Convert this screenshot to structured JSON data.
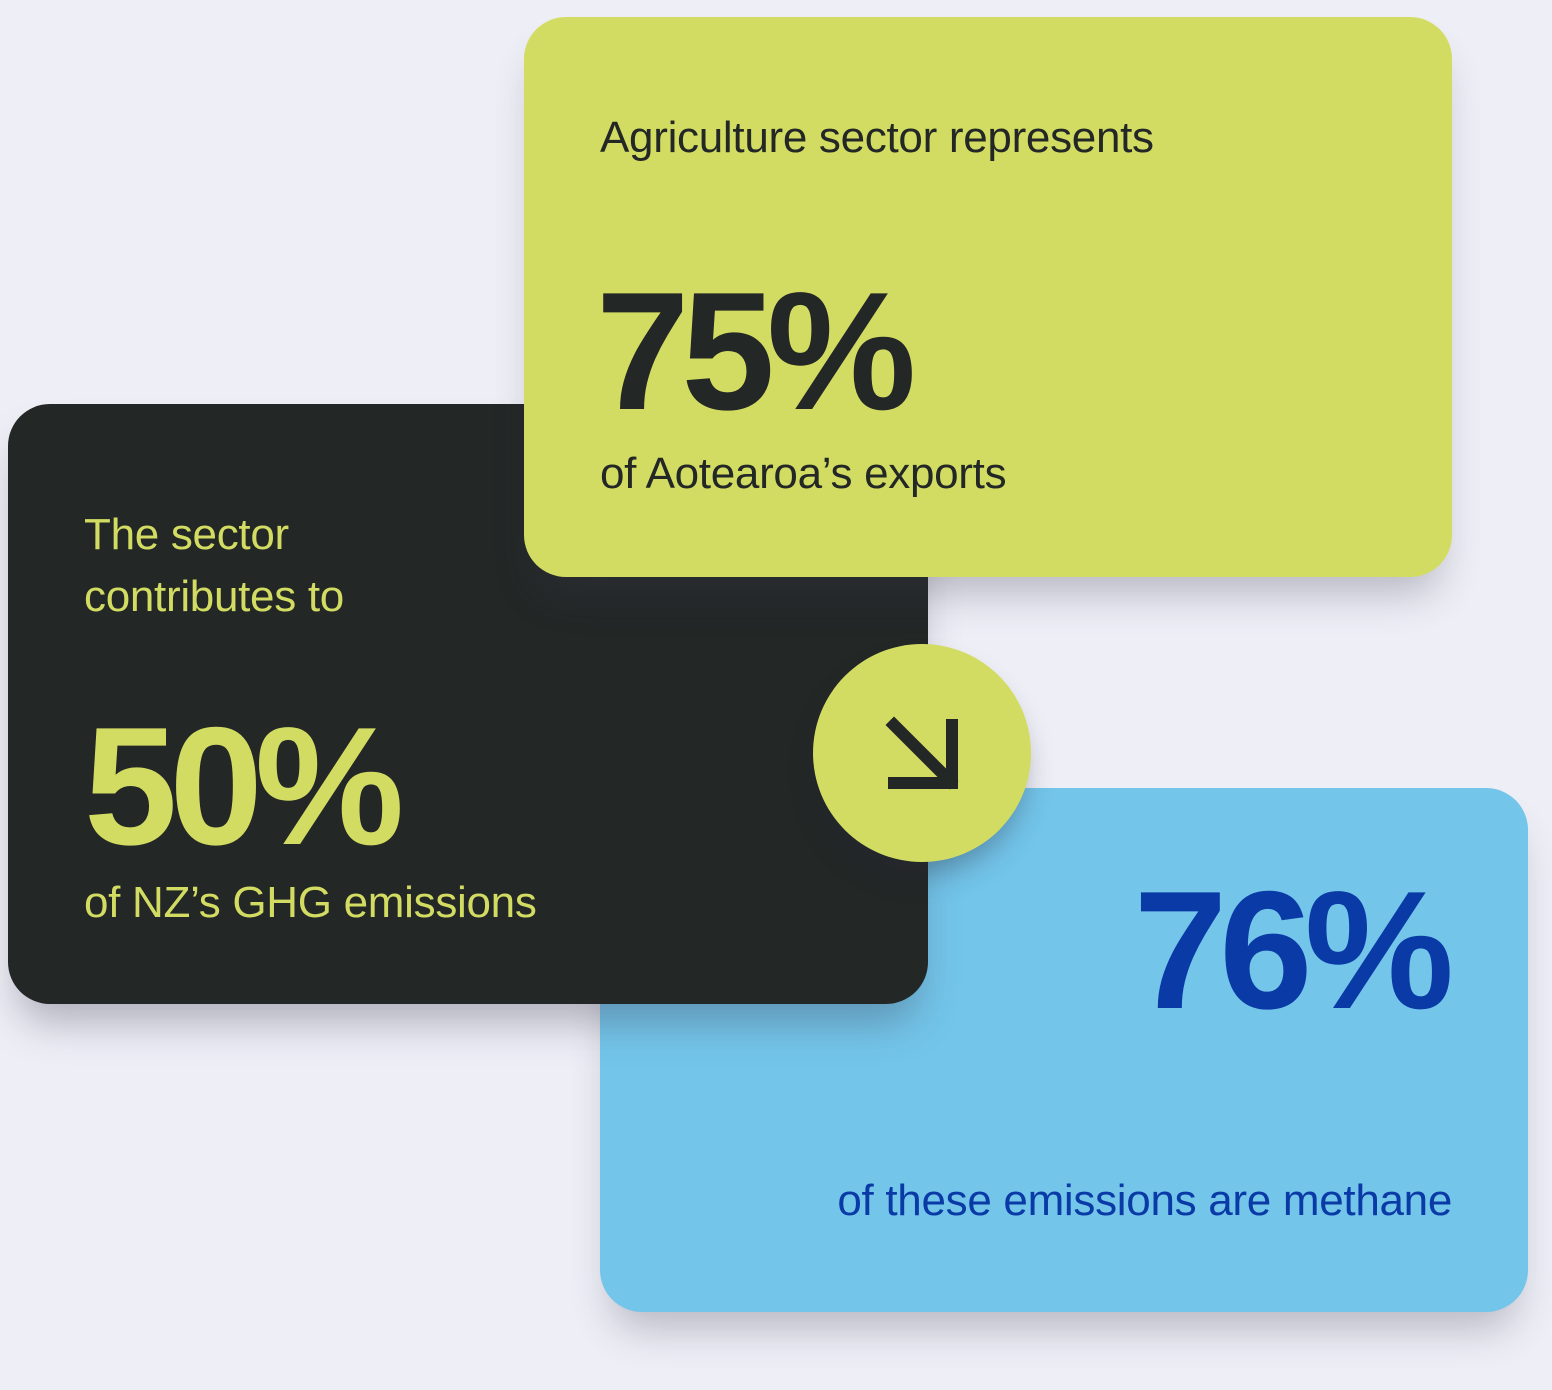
{
  "cards": {
    "exports": {
      "intro": "Agriculture sector represents",
      "stat": "75%",
      "caption": "of Aotearoa’s exports"
    },
    "emissions": {
      "intro": "The sector contributes to",
      "stat": "50%",
      "caption": "of NZ’s GHG emissions"
    },
    "methane": {
      "stat": "76%",
      "caption": "of these emissions are methane"
    }
  },
  "arrow_badge": {
    "icon": "arrow-down-right-icon"
  },
  "colors": {
    "background": "#eeeef6",
    "lime": "#d3dc62",
    "dark": "#232726",
    "sky_blue": "#73c5ea",
    "deep_blue": "#0a3aa6"
  }
}
